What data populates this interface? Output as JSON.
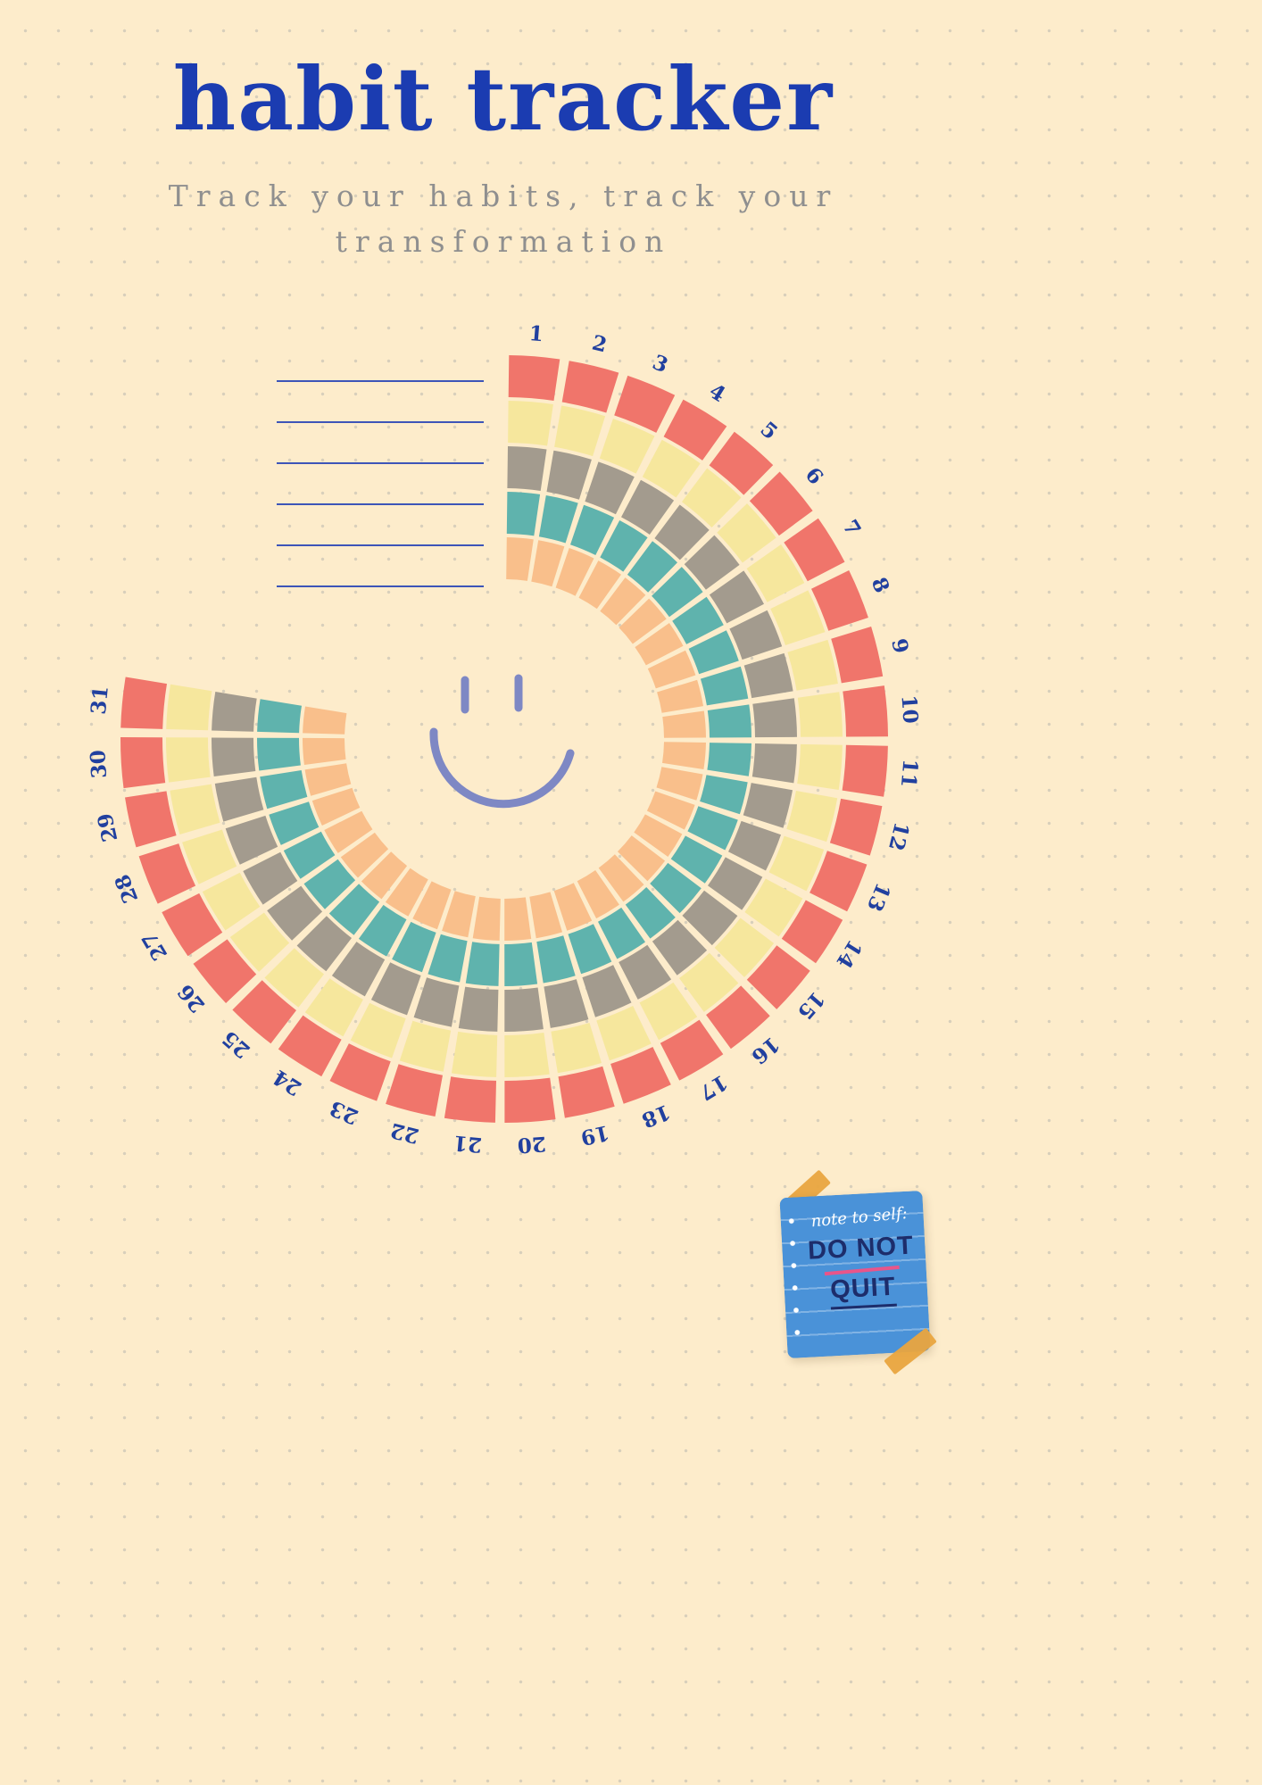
{
  "page": {
    "background": "#fdeccb",
    "title": "habit tracker",
    "title_color": "#1b3cb1",
    "subtitle": "Track your habits, track your transformation",
    "subtitle_color": "#8f8f8f"
  },
  "habit_list": {
    "line_count": 6,
    "line_color": "#3d55b8"
  },
  "tracker": {
    "days": [
      1,
      2,
      3,
      4,
      5,
      6,
      7,
      8,
      9,
      10,
      11,
      12,
      13,
      14,
      15,
      16,
      17,
      18,
      19,
      20,
      21,
      22,
      23,
      24,
      25,
      26,
      27,
      28,
      29,
      30,
      31
    ],
    "label_color": "#21409f",
    "ring_colors": [
      "#f0756b",
      "#f6e79d",
      "#a39b8e",
      "#5fb3ad",
      "#f9bf8b"
    ],
    "smiley_color": "#7e88c4"
  },
  "note": {
    "line1": "note to self:",
    "line2": "DO NOT",
    "line3": "QUIT",
    "paper_color": "#4a92d8",
    "script_color": "#ffffff",
    "text_color": "#1d2d6b",
    "accent_pink": "#e8558a",
    "tape_color": "#e9a53f"
  }
}
